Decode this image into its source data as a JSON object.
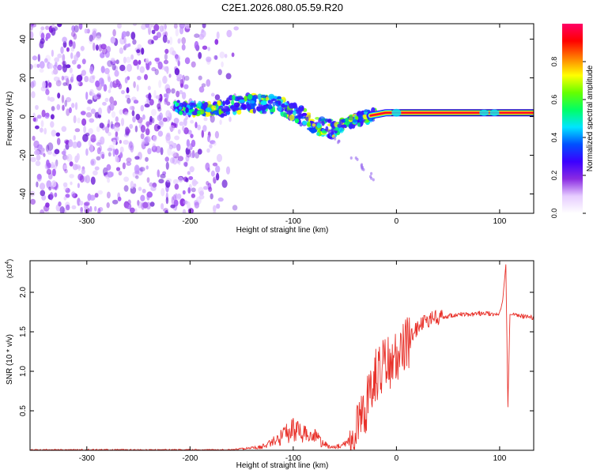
{
  "title": "C2E1.2026.080.05.59.R20",
  "chart_data": [
    {
      "type": "heatmap",
      "title": "C2E1.2026.080.05.59.R20",
      "xlabel": "Height of straight line (km)",
      "ylabel": "Frequency (Hz)",
      "xlim": [
        -355,
        133
      ],
      "ylim": [
        -50,
        48
      ],
      "xticks": [
        -300,
        -200,
        -100,
        0,
        100
      ],
      "xtick_labels": [
        "-300",
        "-200",
        "-100",
        "0",
        "100"
      ],
      "yticks": [
        -40,
        -20,
        0,
        20,
        40
      ],
      "ytick_labels": [
        "-40",
        "-20",
        "0",
        "20",
        "40"
      ],
      "noise_region_x": [
        -355,
        -155
      ],
      "ridge": {
        "x": [
          -215,
          -200,
          -180,
          -160,
          -140,
          -120,
          -100,
          -80,
          -60,
          -50,
          -40,
          -30,
          -20,
          -10,
          0,
          20,
          50,
          80,
          100,
          133
        ],
        "freq": [
          5,
          4,
          4,
          6,
          7,
          6,
          3,
          -4,
          -7,
          -4,
          -2,
          0,
          1,
          2,
          2,
          2,
          2,
          2,
          2,
          2
        ]
      },
      "colorbar": {
        "label": "Normalized spectral amplitude",
        "range": [
          0,
          1
        ],
        "ticks": [
          0.0,
          0.2,
          0.4,
          0.6,
          0.8
        ],
        "tick_labels": [
          "0.0",
          "0.2",
          "0.4",
          "0.6",
          "0.8"
        ],
        "colors": [
          "#ffffff",
          "#e6ccff",
          "#8a2be2",
          "#3b00ff",
          "#0050ff",
          "#00e5ff",
          "#00ff66",
          "#66ff00",
          "#ffff00",
          "#ff8000",
          "#ff0000",
          "#ff0066"
        ]
      }
    },
    {
      "type": "line",
      "xlabel": "Height of straight line (km)",
      "ylabel": "SNR (10 * v/v)",
      "y_scale_note": "(x10^4)",
      "y_scale_base": "(x10",
      "y_scale_exp": "4",
      "xlim": [
        -355,
        133
      ],
      "ylim": [
        0,
        2.4
      ],
      "xticks": [
        -300,
        -200,
        -100,
        0,
        100
      ],
      "xtick_labels": [
        "-300",
        "-200",
        "-100",
        "0",
        "100"
      ],
      "yticks": [
        0.5,
        1.0,
        1.5,
        2.0
      ],
      "ytick_labels": [
        "0.5",
        "1.0",
        "1.5",
        "2.0"
      ],
      "color": "#e8312a",
      "series": [
        {
          "name": "SNR",
          "x": [
            -355,
            -300,
            -250,
            -200,
            -170,
            -150,
            -130,
            -115,
            -100,
            -90,
            -80,
            -70,
            -60,
            -50,
            -40,
            -30,
            -20,
            -10,
            0,
            10,
            20,
            30,
            40,
            50,
            60,
            70,
            80,
            90,
            100,
            103,
            106,
            108,
            110,
            120,
            133
          ],
          "y": [
            0.0,
            0.0,
            0.0,
            0.0,
            0.0,
            0.02,
            0.05,
            0.15,
            0.3,
            0.22,
            0.2,
            0.08,
            0.04,
            0.08,
            0.25,
            0.55,
            0.95,
            1.1,
            1.15,
            1.35,
            1.55,
            1.65,
            1.68,
            1.7,
            1.72,
            1.72,
            1.73,
            1.73,
            1.72,
            1.9,
            2.35,
            0.55,
            1.72,
            1.7,
            1.68
          ]
        }
      ]
    }
  ]
}
